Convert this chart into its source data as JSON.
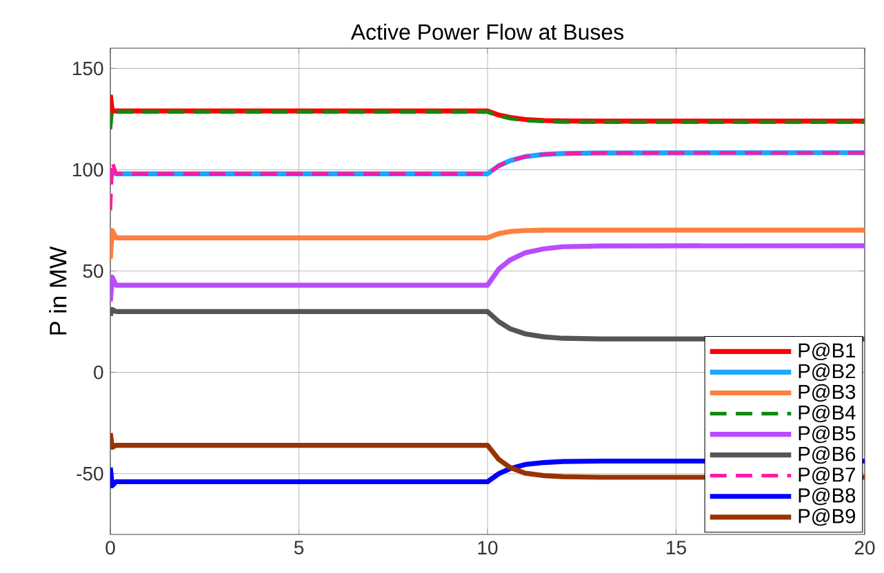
{
  "chart_data": {
    "type": "line",
    "title": "Active Power Flow at Buses",
    "ylabel": "P in MW",
    "x": [
      0,
      0.05,
      0.15,
      0.3,
      10,
      10.3,
      10.6,
      11,
      11.5,
      12,
      13,
      20
    ],
    "xlim": [
      0,
      20
    ],
    "xticks": [
      0,
      5,
      10,
      15,
      20
    ],
    "ylim": [
      -80,
      160
    ],
    "yticks": [
      -50,
      0,
      50,
      100,
      150
    ],
    "grid": true,
    "legend": "bottom right",
    "marker": "none",
    "series": [
      {
        "name": "P@B1",
        "color": "#ff0000",
        "line_style": "solid",
        "values": [
          137,
          129,
          129,
          129,
          129,
          127,
          125.8,
          124.8,
          124.3,
          124.1,
          124,
          124
        ]
      },
      {
        "name": "P@B2",
        "color": "#1aa7ff",
        "line_style": "solid",
        "values": [
          95,
          99,
          98,
          98,
          98,
          102,
          104.5,
          106.5,
          107.6,
          108,
          108.3,
          108.4
        ]
      },
      {
        "name": "P@B3",
        "color": "#ff7f3f",
        "line_style": "solid",
        "values": [
          56,
          70,
          66.4,
          66.4,
          66.4,
          68.5,
          69.5,
          70,
          70.2,
          70.2,
          70.2,
          70.2
        ]
      },
      {
        "name": "P@B4",
        "color": "#118811",
        "line_style": "dashed",
        "values": [
          120,
          130,
          128.5,
          128.5,
          128.5,
          126.5,
          125.3,
          124.3,
          123.8,
          123.6,
          123.5,
          123.5
        ]
      },
      {
        "name": "P@B5",
        "color": "#b94cff",
        "line_style": "solid",
        "values": [
          35,
          47,
          43,
          43,
          43,
          51,
          55.5,
          59,
          61,
          62,
          62.4,
          62.5
        ]
      },
      {
        "name": "P@B6",
        "color": "#555555",
        "line_style": "solid",
        "values": [
          28,
          31,
          30,
          30,
          30,
          25,
          21.5,
          19,
          17.5,
          16.8,
          16.5,
          16.4
        ]
      },
      {
        "name": "P@B7",
        "color": "#ff1aa6",
        "line_style": "dashed",
        "values": [
          80,
          104,
          98,
          98,
          98,
          102,
          104.5,
          106.5,
          107.6,
          108,
          108.3,
          108.4
        ]
      },
      {
        "name": "P@B8",
        "color": "#0000ff",
        "line_style": "solid",
        "values": [
          -47,
          -56,
          -54,
          -54,
          -54,
          -50,
          -47.5,
          -45.5,
          -44.5,
          -44,
          -43.8,
          -43.8
        ]
      },
      {
        "name": "P@B9",
        "color": "#993300",
        "line_style": "solid",
        "values": [
          -30,
          -37,
          -36,
          -36,
          -36,
          -43,
          -47,
          -49.8,
          -51,
          -51.5,
          -51.8,
          -51.8
        ]
      }
    ]
  }
}
